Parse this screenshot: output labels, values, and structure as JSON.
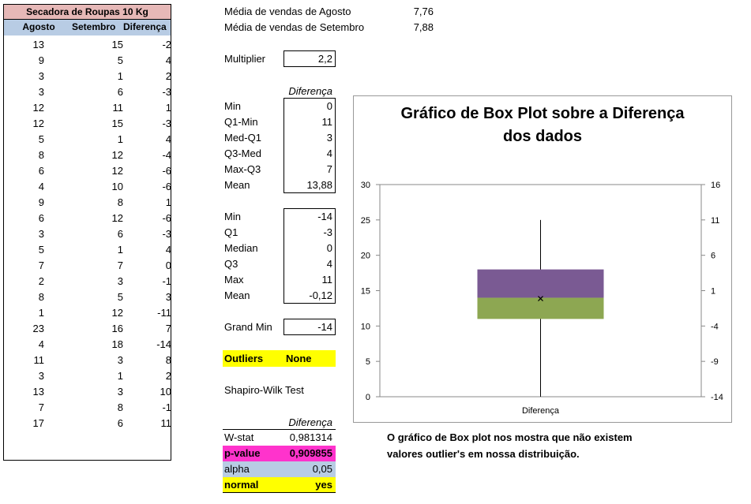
{
  "left_table": {
    "title": "Secadora de Roupas 10 Kg",
    "headers": [
      "Agosto",
      "Setembro",
      "Diferença"
    ],
    "rows": [
      [
        "13",
        "15",
        "-2"
      ],
      [
        "9",
        "5",
        "4"
      ],
      [
        "3",
        "1",
        "2"
      ],
      [
        "3",
        "6",
        "-3"
      ],
      [
        "12",
        "11",
        "1"
      ],
      [
        "12",
        "15",
        "-3"
      ],
      [
        "5",
        "1",
        "4"
      ],
      [
        "8",
        "12",
        "-4"
      ],
      [
        "6",
        "12",
        "-6"
      ],
      [
        "4",
        "10",
        "-6"
      ],
      [
        "9",
        "8",
        "1"
      ],
      [
        "6",
        "12",
        "-6"
      ],
      [
        "3",
        "6",
        "-3"
      ],
      [
        "5",
        "1",
        "4"
      ],
      [
        "7",
        "7",
        "0"
      ],
      [
        "2",
        "3",
        "-1"
      ],
      [
        "8",
        "5",
        "3"
      ],
      [
        "1",
        "12",
        "-11"
      ],
      [
        "23",
        "16",
        "7"
      ],
      [
        "4",
        "18",
        "-14"
      ],
      [
        "11",
        "3",
        "8"
      ],
      [
        "3",
        "1",
        "2"
      ],
      [
        "13",
        "3",
        "10"
      ],
      [
        "7",
        "8",
        "-1"
      ],
      [
        "17",
        "6",
        "11"
      ]
    ]
  },
  "averages": {
    "aug_label": "Média de vendas de Agosto",
    "aug_value": "7,76",
    "sep_label": "Média de vendas de Setembro",
    "sep_value": "7,88"
  },
  "multiplier": {
    "label": "Multiplier",
    "value": "2,2"
  },
  "box_stats": {
    "header": "Diferença",
    "rows": [
      {
        "label": "Min",
        "value": "0"
      },
      {
        "label": "Q1-Min",
        "value": "11"
      },
      {
        "label": "Med-Q1",
        "value": "3"
      },
      {
        "label": "Q3-Med",
        "value": "4"
      },
      {
        "label": "Max-Q3",
        "value": "7"
      },
      {
        "label": "Mean",
        "value": "13,88"
      }
    ]
  },
  "summary_stats": {
    "rows": [
      {
        "label": "Min",
        "value": "-14"
      },
      {
        "label": "Q1",
        "value": "-3"
      },
      {
        "label": "Median",
        "value": "0"
      },
      {
        "label": "Q3",
        "value": "4"
      },
      {
        "label": "Max",
        "value": "11"
      },
      {
        "label": "Mean",
        "value": "-0,12"
      }
    ]
  },
  "grand_min": {
    "label": "Grand Min",
    "value": "-14"
  },
  "outliers": {
    "label": "Outliers",
    "value": "None",
    "color": "#ffff00"
  },
  "shapiro": {
    "title": "Shapiro-Wilk Test",
    "header": "Diferença",
    "wstat_label": "W-stat",
    "wstat_value": "0,981314",
    "pvalue_label": "p-value",
    "pvalue_value": "0,909855",
    "pvalue_color": "#ff33cc",
    "alpha_label": "alpha",
    "alpha_value": "0,05",
    "alpha_color": "#b8cce4",
    "normal_label": "normal",
    "normal_value": "yes",
    "normal_color": "#ffff00"
  },
  "note": {
    "line1": "O gráfico de Box plot nos mostra que não existem",
    "line2": "valores outlier's em nossa distribuição."
  },
  "chart_data": {
    "type": "box",
    "title_line1": "Gráfico de Box Plot sobre a Diferença",
    "title_line2": "dos dados",
    "category": "Diferença",
    "left_axis": {
      "ticks": [
        0,
        5,
        10,
        15,
        20,
        25,
        30
      ],
      "range": [
        0,
        30
      ]
    },
    "right_axis_ticks": [
      "16",
      "11",
      "6",
      "1",
      "-4",
      "-9",
      "-14"
    ],
    "whisker_low": 0,
    "q1": 11,
    "median": 14,
    "q3": 18,
    "whisker_high": 25,
    "mean": 13.88,
    "lower_box_color": "#8da752",
    "upper_box_color": "#7a5a93"
  }
}
